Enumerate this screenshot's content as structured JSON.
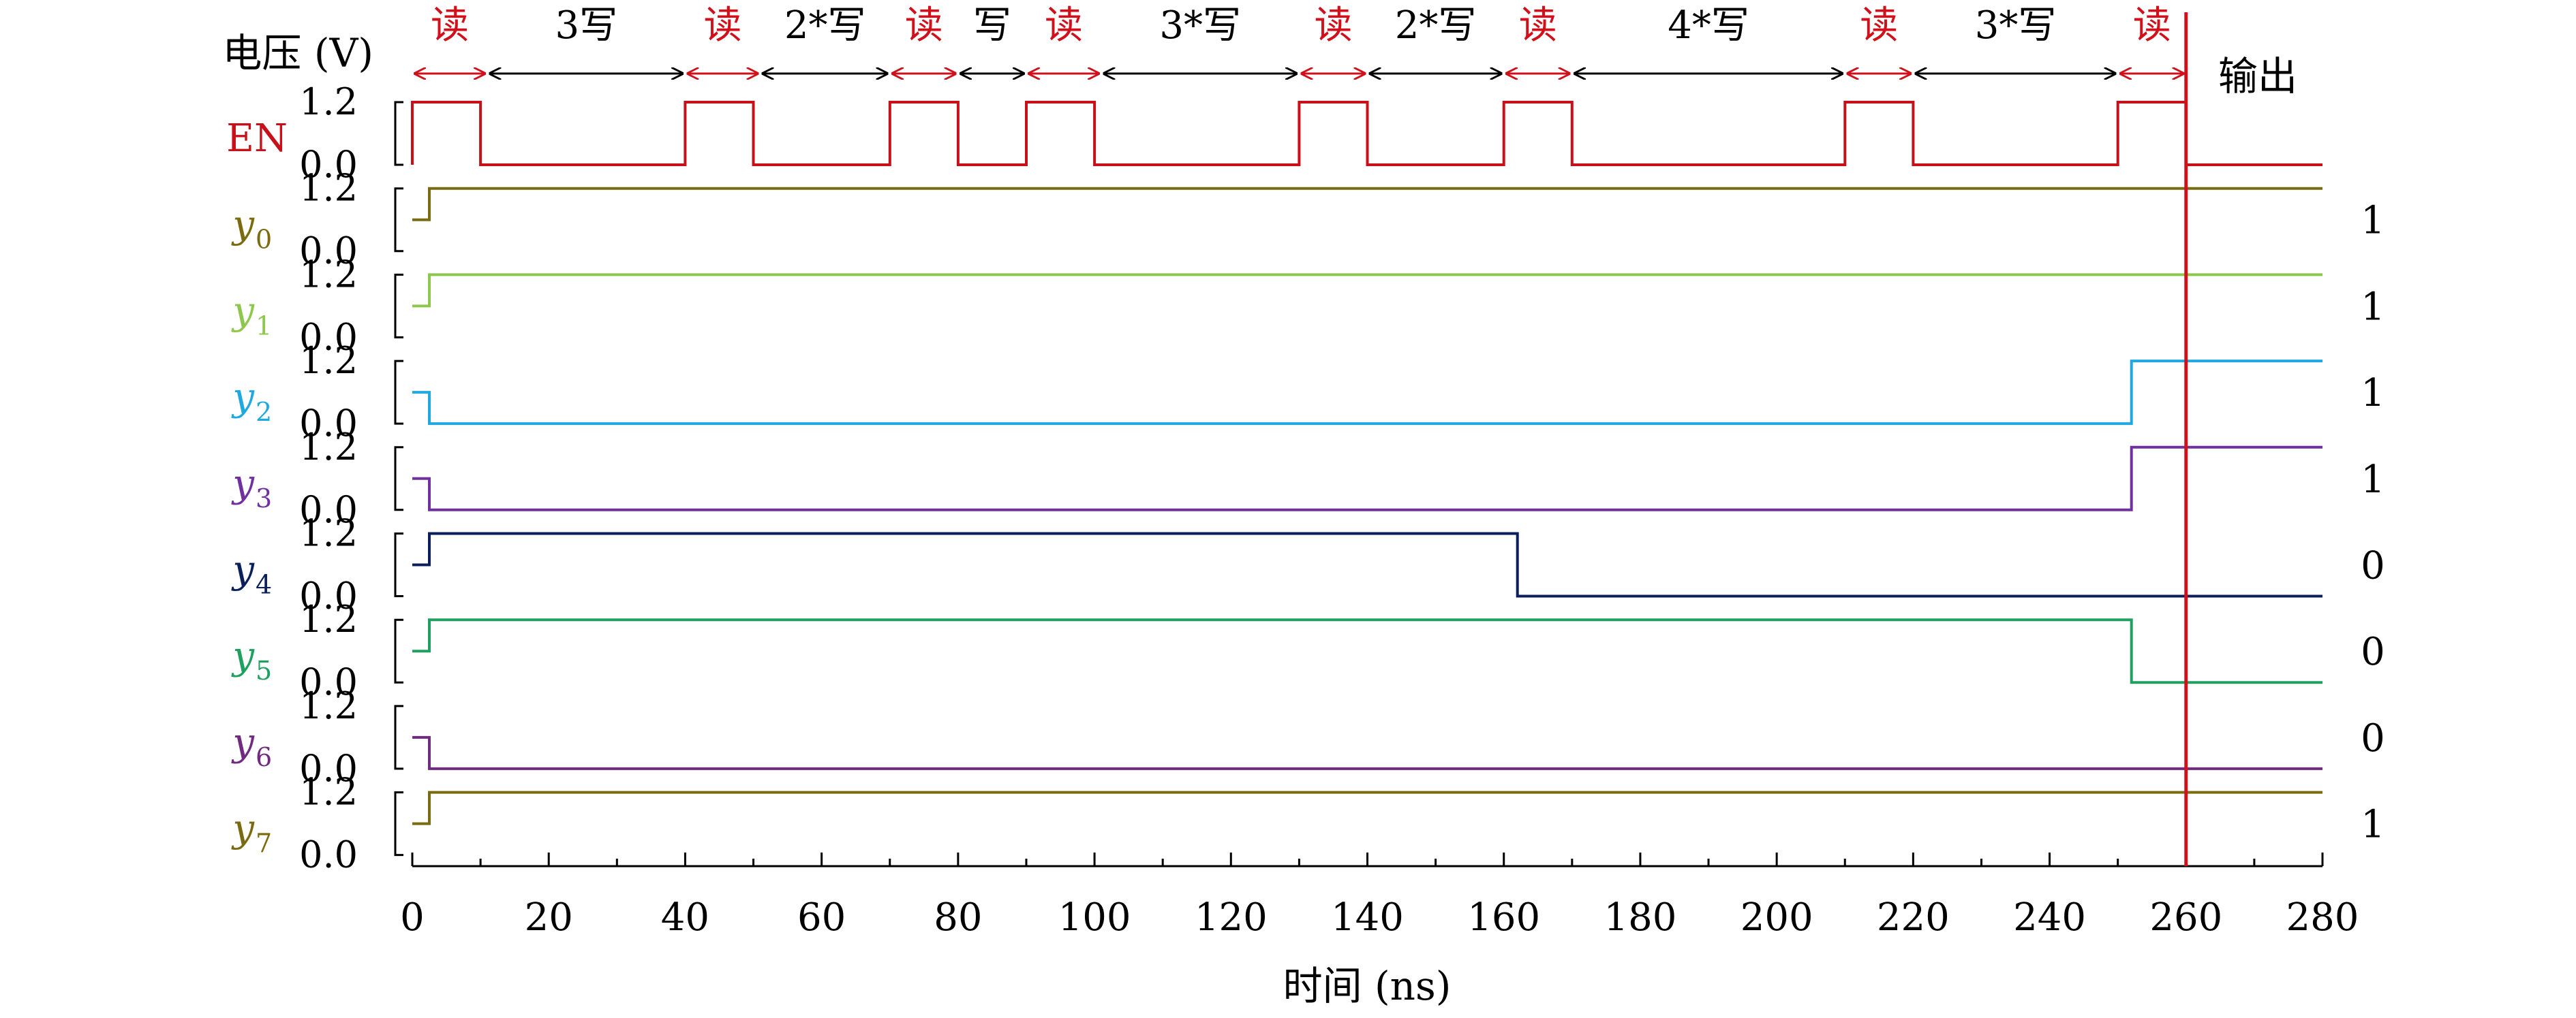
{
  "colors": {
    "red": "#d0101a",
    "black": "#000000",
    "axis": "#000000"
  },
  "chart_data": {
    "type": "line",
    "ylabel": "电压 (V)",
    "xlabel": "时间 (ns)",
    "xlim": [
      0,
      280
    ],
    "x_ticks": [
      0,
      20,
      40,
      60,
      80,
      100,
      120,
      140,
      160,
      180,
      200,
      220,
      240,
      260,
      280
    ],
    "y_tick_labels": [
      "1.2",
      "0.0"
    ],
    "output_label": "输出",
    "output_time": 260,
    "phases": [
      {
        "label": "读",
        "kind": "read",
        "start": 0,
        "end": 11
      },
      {
        "label": "3写",
        "kind": "write",
        "start": 11,
        "end": 40
      },
      {
        "label": "读",
        "kind": "read",
        "start": 40,
        "end": 51
      },
      {
        "label": "2*写",
        "kind": "write",
        "start": 51,
        "end": 70
      },
      {
        "label": "读",
        "kind": "read",
        "start": 70,
        "end": 80
      },
      {
        "label": "写",
        "kind": "write",
        "start": 80,
        "end": 90
      },
      {
        "label": "读",
        "kind": "read",
        "start": 90,
        "end": 101
      },
      {
        "label": "3*写",
        "kind": "write",
        "start": 101,
        "end": 130
      },
      {
        "label": "读",
        "kind": "read",
        "start": 130,
        "end": 140
      },
      {
        "label": "2*写",
        "kind": "write",
        "start": 140,
        "end": 160
      },
      {
        "label": "读",
        "kind": "read",
        "start": 160,
        "end": 170
      },
      {
        "label": "4*写",
        "kind": "write",
        "start": 170,
        "end": 210
      },
      {
        "label": "读",
        "kind": "read",
        "start": 210,
        "end": 220
      },
      {
        "label": "3*写",
        "kind": "write",
        "start": 220,
        "end": 250
      },
      {
        "label": "读",
        "kind": "read",
        "start": 250,
        "end": 260
      }
    ],
    "series": [
      {
        "name": "EN",
        "sub": "",
        "color": "#c8101a",
        "output": "",
        "x": [
          0,
          0,
          10,
          10,
          40,
          40,
          50,
          50,
          70,
          70,
          80,
          80,
          90,
          90,
          100,
          100,
          130,
          130,
          140,
          140,
          160,
          160,
          170,
          170,
          210,
          210,
          220,
          220,
          250,
          250,
          260,
          260,
          280
        ],
        "y": [
          0,
          1.2,
          1.2,
          0,
          0,
          1.2,
          1.2,
          0,
          0,
          1.2,
          1.2,
          0,
          0,
          1.2,
          1.2,
          0,
          0,
          1.2,
          1.2,
          0,
          0,
          1.2,
          1.2,
          0,
          0,
          1.2,
          1.2,
          0,
          0,
          1.2,
          1.2,
          0,
          0
        ]
      },
      {
        "name": "y",
        "sub": "0",
        "color": "#7a6a10",
        "output": "1",
        "x": [
          0,
          2.5,
          2.5,
          280
        ],
        "y": [
          0.6,
          0.6,
          1.2,
          1.2
        ]
      },
      {
        "name": "y",
        "sub": "1",
        "color": "#8cc84b",
        "output": "1",
        "x": [
          0,
          2.5,
          2.5,
          280
        ],
        "y": [
          0.6,
          0.6,
          1.2,
          1.2
        ]
      },
      {
        "name": "y",
        "sub": "2",
        "color": "#20a8e0",
        "output": "1",
        "x": [
          0,
          2.5,
          2.5,
          252,
          252,
          280
        ],
        "y": [
          0.6,
          0.6,
          0,
          0,
          1.2,
          1.2
        ]
      },
      {
        "name": "y",
        "sub": "3",
        "color": "#7030a0",
        "output": "1",
        "x": [
          0,
          2.5,
          2.5,
          252,
          252,
          280
        ],
        "y": [
          0.6,
          0.6,
          0,
          0,
          1.2,
          1.2
        ]
      },
      {
        "name": "y",
        "sub": "4",
        "color": "#0a1f5c",
        "output": "0",
        "x": [
          0,
          2.5,
          2.5,
          162,
          162,
          280
        ],
        "y": [
          0.6,
          0.6,
          1.2,
          1.2,
          0,
          0
        ]
      },
      {
        "name": "y",
        "sub": "5",
        "color": "#20a060",
        "output": "0",
        "x": [
          0,
          2.5,
          2.5,
          252,
          252,
          280
        ],
        "y": [
          0.6,
          0.6,
          1.2,
          1.2,
          0,
          0
        ]
      },
      {
        "name": "y",
        "sub": "6",
        "color": "#702a80",
        "output": "0",
        "x": [
          0,
          2.5,
          2.5,
          280
        ],
        "y": [
          0.6,
          0.6,
          0,
          0
        ]
      },
      {
        "name": "y",
        "sub": "7",
        "color": "#7a6a10",
        "output": "1",
        "x": [
          0,
          2.5,
          2.5,
          280
        ],
        "y": [
          0.6,
          0.6,
          1.2,
          1.2
        ]
      }
    ]
  }
}
